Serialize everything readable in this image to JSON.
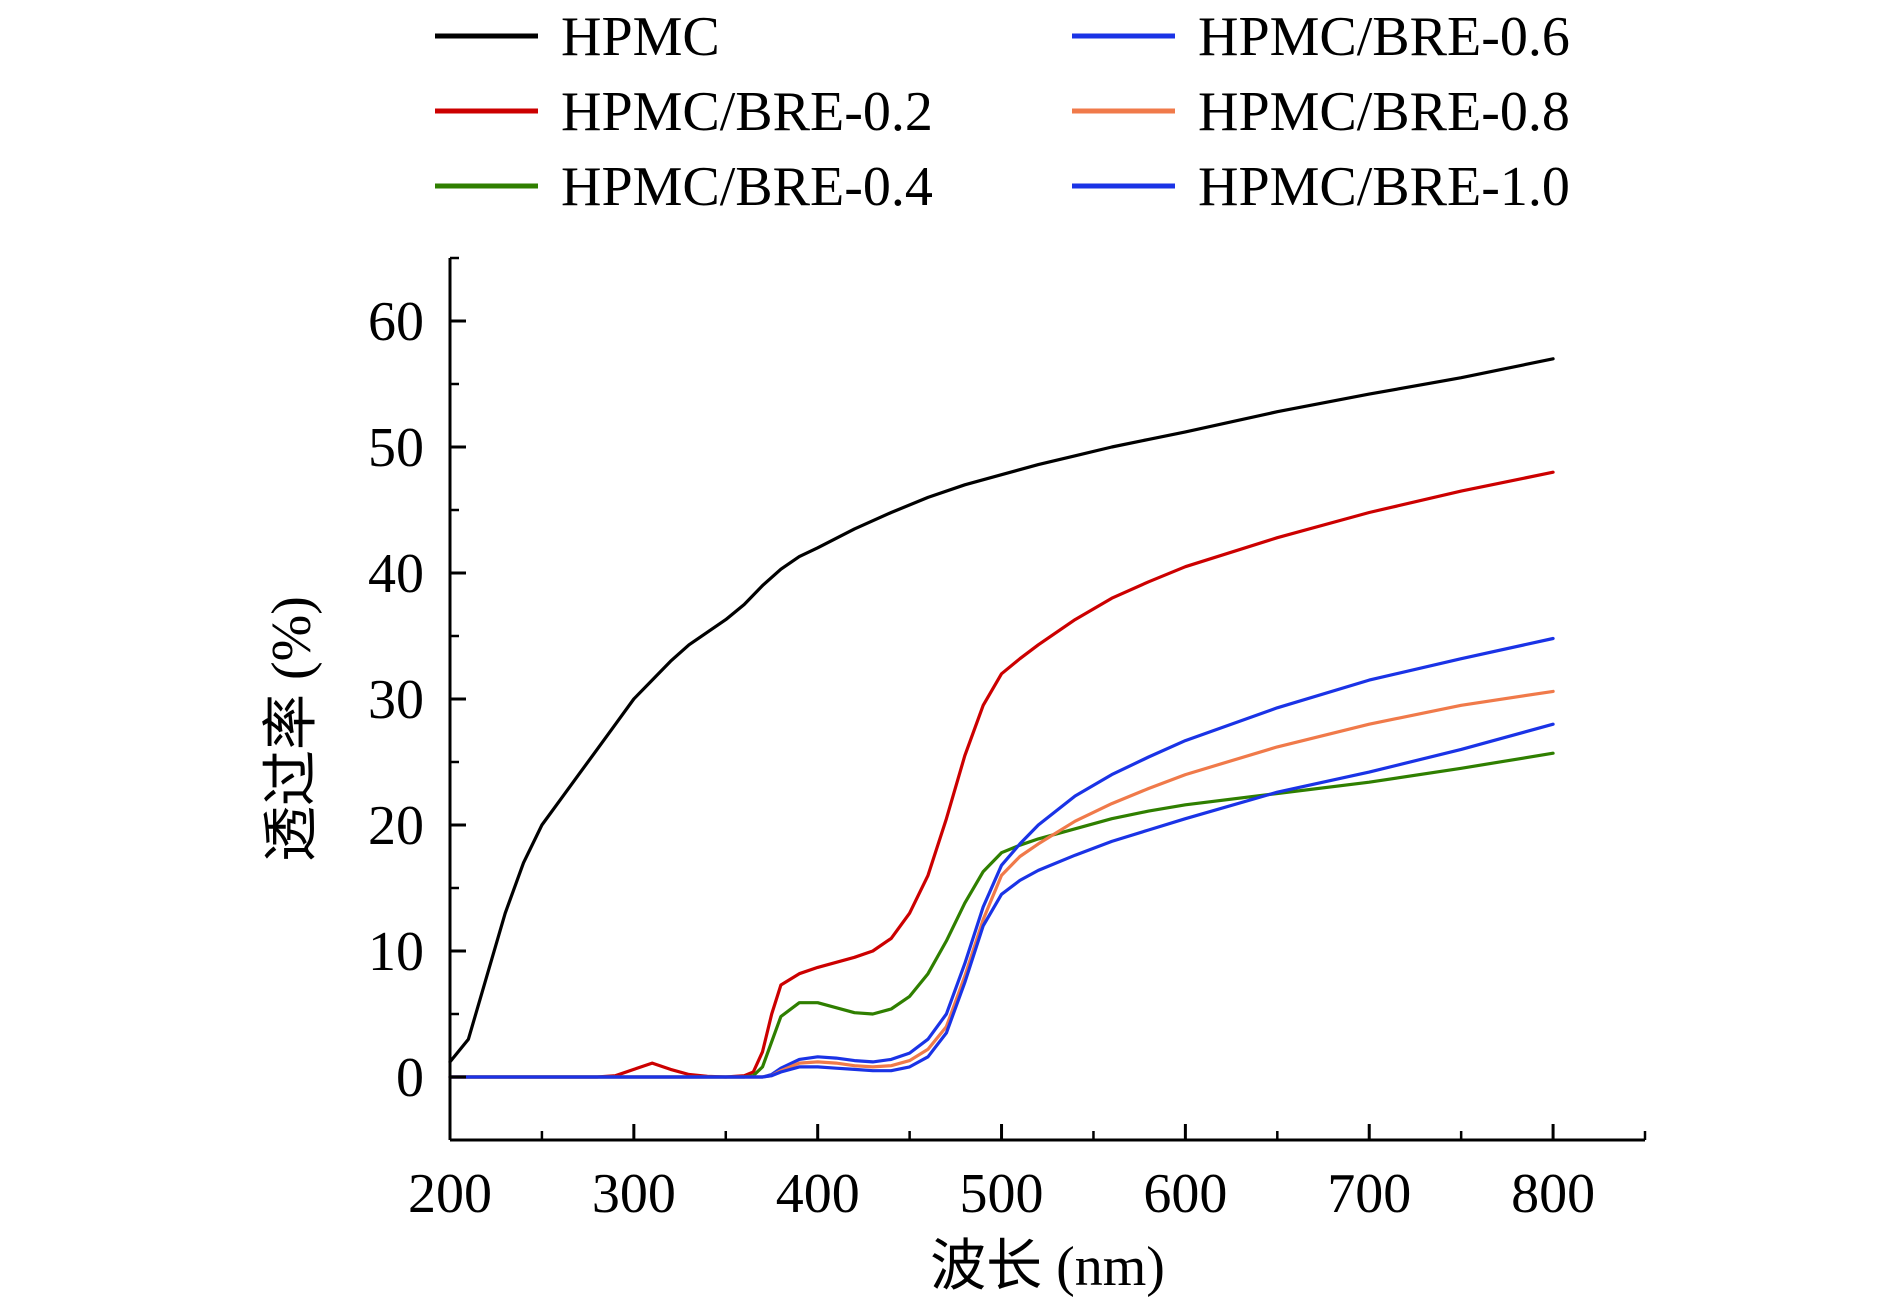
{
  "chart_data": {
    "type": "line",
    "title": "",
    "xlabel": "波长 (nm)",
    "ylabel": "透过率 (%)",
    "xlim": [
      200,
      850
    ],
    "ylim": [
      -5,
      65
    ],
    "x_ticks": [
      200,
      300,
      400,
      500,
      600,
      700,
      800
    ],
    "y_ticks": [
      0,
      10,
      20,
      30,
      40,
      50,
      60
    ],
    "x_tick_labels": [
      "200",
      "300",
      "400",
      "500",
      "600",
      "700",
      "800"
    ],
    "y_tick_labels": [
      "0",
      "10",
      "20",
      "30",
      "40",
      "50",
      "60"
    ],
    "grid": false,
    "legend_position": "top",
    "series": [
      {
        "name": "HPMC",
        "color": "#000000",
        "x": [
          200,
          210,
          220,
          230,
          240,
          250,
          260,
          270,
          280,
          290,
          300,
          310,
          320,
          330,
          340,
          350,
          360,
          370,
          380,
          390,
          400,
          420,
          440,
          460,
          480,
          500,
          520,
          540,
          560,
          580,
          600,
          650,
          700,
          750,
          800
        ],
        "y": [
          1.2,
          3,
          8,
          13,
          17,
          20,
          22,
          24,
          26,
          28,
          30,
          31.5,
          33,
          34.3,
          35.3,
          36.3,
          37.5,
          39,
          40.3,
          41.3,
          42,
          43.5,
          44.8,
          46,
          47,
          47.8,
          48.6,
          49.3,
          50,
          50.6,
          51.2,
          52.8,
          54.2,
          55.5,
          57
        ]
      },
      {
        "name": "HPMC/BRE-0.2",
        "color": "#cc0000",
        "x": [
          200,
          280,
          290,
          300,
          310,
          320,
          330,
          340,
          350,
          360,
          365,
          370,
          375,
          380,
          390,
          400,
          420,
          430,
          440,
          450,
          460,
          470,
          480,
          490,
          500,
          510,
          520,
          540,
          560,
          580,
          600,
          650,
          700,
          750,
          800
        ],
        "y": [
          0,
          0,
          0.1,
          0.6,
          1.1,
          0.6,
          0.2,
          0.05,
          0,
          0.1,
          0.4,
          2,
          5,
          7.3,
          8.2,
          8.7,
          9.5,
          10,
          11,
          13,
          16,
          20.5,
          25.5,
          29.5,
          32,
          33.2,
          34.3,
          36.3,
          38,
          39.3,
          40.5,
          42.8,
          44.8,
          46.5,
          48
        ]
      },
      {
        "name": "HPMC/BRE-0.4",
        "color": "#2f7f00",
        "x": [
          200,
          360,
          365,
          370,
          375,
          380,
          390,
          400,
          410,
          420,
          430,
          440,
          450,
          460,
          470,
          480,
          490,
          500,
          510,
          520,
          540,
          560,
          580,
          600,
          650,
          700,
          750,
          800
        ],
        "y": [
          0,
          0,
          0.1,
          0.8,
          2.8,
          4.8,
          5.9,
          5.9,
          5.5,
          5.1,
          5,
          5.4,
          6.4,
          8.2,
          10.8,
          13.8,
          16.3,
          17.8,
          18.4,
          18.9,
          19.7,
          20.5,
          21.1,
          21.6,
          22.5,
          23.4,
          24.5,
          25.7
        ]
      },
      {
        "name": "HPMC/BRE-0.6",
        "color": "#1a33e6",
        "x": [
          200,
          370,
          375,
          380,
          390,
          400,
          410,
          420,
          430,
          440,
          450,
          460,
          470,
          480,
          490,
          500,
          510,
          520,
          540,
          560,
          580,
          600,
          650,
          700,
          750,
          800
        ],
        "y": [
          0,
          0,
          0.2,
          0.7,
          1.4,
          1.6,
          1.5,
          1.3,
          1.2,
          1.4,
          1.9,
          3,
          5,
          9,
          13.5,
          16.8,
          18.5,
          20,
          22.3,
          24,
          25.4,
          26.7,
          29.3,
          31.5,
          33.2,
          34.8
        ]
      },
      {
        "name": "HPMC/BRE-0.8",
        "color": "#f07a4a",
        "x": [
          200,
          370,
          375,
          380,
          390,
          400,
          410,
          420,
          430,
          440,
          450,
          460,
          470,
          480,
          490,
          500,
          510,
          520,
          540,
          560,
          580,
          600,
          650,
          700,
          750,
          800
        ],
        "y": [
          0,
          0,
          0.1,
          0.5,
          1.1,
          1.2,
          1.1,
          0.9,
          0.8,
          0.9,
          1.3,
          2.2,
          4,
          8,
          12.5,
          16,
          17.5,
          18.5,
          20.3,
          21.7,
          22.9,
          24,
          26.2,
          28,
          29.5,
          30.6
        ]
      },
      {
        "name": "HPMC/BRE-1.0",
        "color": "#1a33e6",
        "x": [
          200,
          370,
          375,
          380,
          390,
          400,
          410,
          420,
          430,
          440,
          450,
          460,
          470,
          480,
          490,
          500,
          510,
          520,
          540,
          560,
          580,
          600,
          650,
          700,
          750,
          800
        ],
        "y": [
          0,
          0,
          0.1,
          0.4,
          0.8,
          0.8,
          0.7,
          0.6,
          0.5,
          0.5,
          0.8,
          1.6,
          3.5,
          7.5,
          12,
          14.5,
          15.6,
          16.4,
          17.6,
          18.7,
          19.6,
          20.5,
          22.6,
          24.2,
          26,
          28
        ]
      }
    ]
  }
}
